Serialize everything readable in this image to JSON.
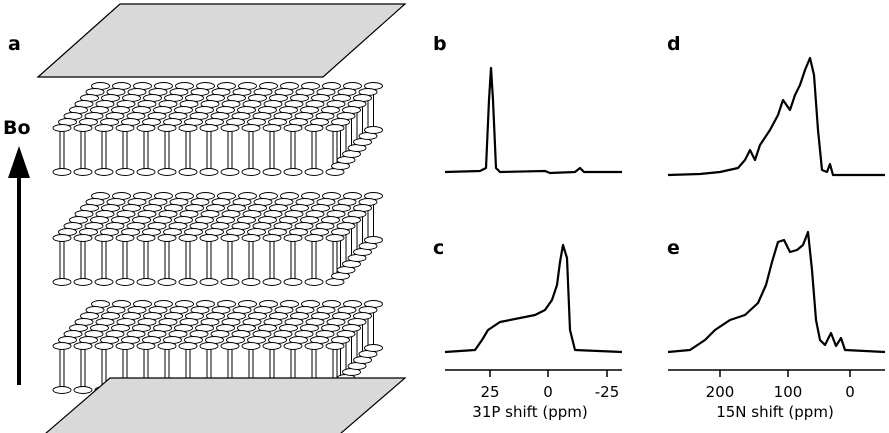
{
  "panels": {
    "a": {
      "label": "a",
      "field_label": "Bo"
    },
    "b": {
      "label": "b"
    },
    "c": {
      "label": "c"
    },
    "d": {
      "label": "d"
    },
    "e": {
      "label": "e"
    }
  },
  "axes": [
    {
      "ticks": [
        25,
        0,
        -25
      ],
      "title": "31P shift (ppm)"
    },
    {
      "ticks": [
        200,
        100,
        0
      ],
      "title": "15N shift (ppm)"
    }
  ]
}
